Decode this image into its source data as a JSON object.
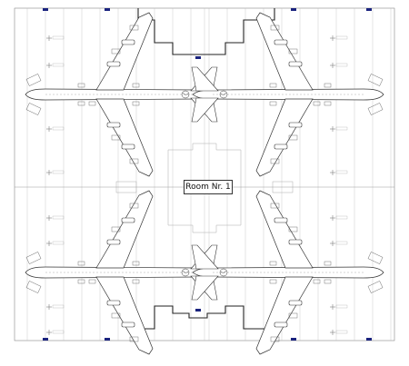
{
  "room": {
    "label": "Room Nr. 1"
  },
  "colors": {
    "line": "#444444",
    "grid": "#bbbbbb",
    "wall": "#222222",
    "marker": "#1a237e"
  },
  "aircraft": [
    {
      "id": "top-left",
      "facing": "left"
    },
    {
      "id": "top-right",
      "facing": "right"
    },
    {
      "id": "bottom-left",
      "facing": "left"
    },
    {
      "id": "bottom-right",
      "facing": "right"
    }
  ]
}
